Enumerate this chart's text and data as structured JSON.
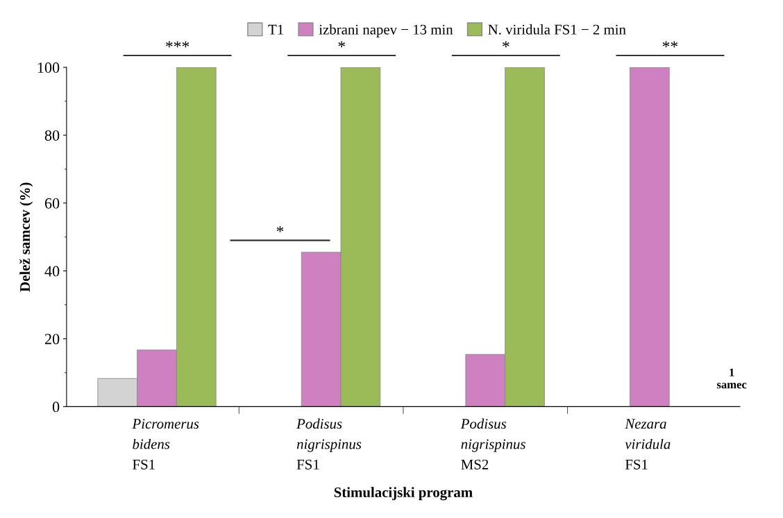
{
  "chart_data": {
    "type": "bar",
    "xlabel": "Stimulacijski program",
    "ylabel": "Delež samcev (%)",
    "categories": [
      "Picromerus\nbidens\nFS1",
      "Podisus\nnigrispinus\nFS1",
      "Podisus\nnigrispinus\nMS2",
      "Nezara\nviridula\nFS1"
    ],
    "series": [
      {
        "name": "T1",
        "color": "#d3d3d3",
        "values": [
          8.3,
          null,
          null,
          null
        ]
      },
      {
        "name": "izbrani napev − 13 min",
        "color": "#cf80c0",
        "values": [
          16.7,
          45.5,
          15.4,
          100
        ]
      },
      {
        "name": "N. viridula FS1 − 2 min",
        "color": "#9bbb59",
        "values": [
          100,
          100,
          100,
          null
        ]
      }
    ],
    "ylim": [
      0,
      100
    ],
    "yticks": [
      0,
      20,
      40,
      60,
      80,
      100
    ],
    "grid": false,
    "legend": "top",
    "annotations": [
      "***",
      "*",
      "*",
      "*",
      "**",
      "1\nsamec"
    ]
  }
}
